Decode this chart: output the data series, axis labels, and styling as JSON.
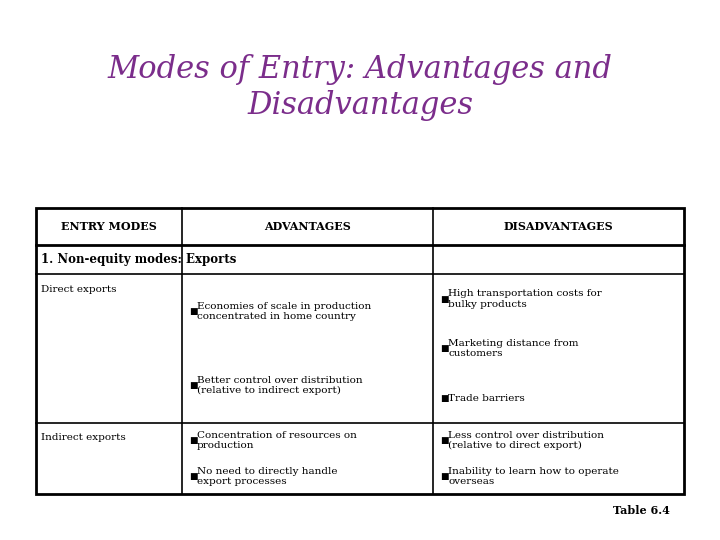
{
  "title": "Modes of Entry: Advantages and\nDisadvantages",
  "title_color": "#7B2D8B",
  "table_caption": "Table 6.4",
  "background_color": "#FFFFFF",
  "header_row": [
    "Entry Modes",
    "Advantages",
    "Disadvantages"
  ],
  "section_header": "1. Non-equity modes: Exports",
  "rows": [
    {
      "entry": "Direct exports",
      "advantages": [
        "Economies of scale in production\nconcentrated in home country",
        "Better control over distribution\n(relative to indirect export)"
      ],
      "disadvantages": [
        "High transportation costs for\nbulky products",
        "Marketing distance from\ncustomers",
        "Trade barriers"
      ]
    },
    {
      "entry": "Indirect exports",
      "advantages": [
        "Concentration of resources on\nproduction",
        "No need to directly handle\nexport processes"
      ],
      "disadvantages": [
        "Less control over distribution\n(relative to direct export)",
        "Inability to learn how to operate\noverseas"
      ]
    }
  ],
  "font_size_header": 8,
  "font_size_body": 7.5,
  "font_size_section": 8.5,
  "font_size_title": 22,
  "font_size_caption": 8
}
